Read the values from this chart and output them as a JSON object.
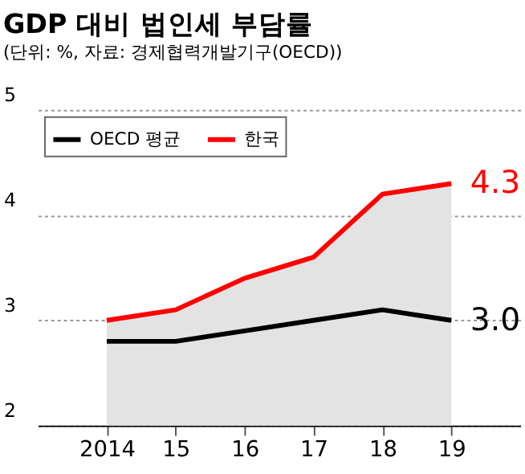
{
  "chart_data": {
    "type": "line",
    "title": "GDP 대비 법인세 부담률",
    "subtitle": "(단위: %, 자료: 경제협력개발기구(OECD))",
    "categories": [
      "2014",
      "15",
      "16",
      "17",
      "18",
      "19"
    ],
    "series": [
      {
        "name": "OECD 평균",
        "color": "#000000",
        "values": [
          2.8,
          2.8,
          2.9,
          3.0,
          3.1,
          3.0
        ]
      },
      {
        "name": "한국",
        "color": "#ff0000",
        "type": "area",
        "values": [
          3.0,
          3.1,
          3.4,
          3.6,
          4.2,
          4.3
        ]
      }
    ],
    "ylim": [
      2,
      5
    ],
    "yticks": [
      2,
      3,
      4,
      5
    ],
    "grid": "y",
    "legend": "top left",
    "annotations": [
      {
        "text": "3.0",
        "x": "19",
        "y": 3.0
      },
      {
        "text": "4.3",
        "x": "19",
        "y": 4.3
      }
    ]
  }
}
